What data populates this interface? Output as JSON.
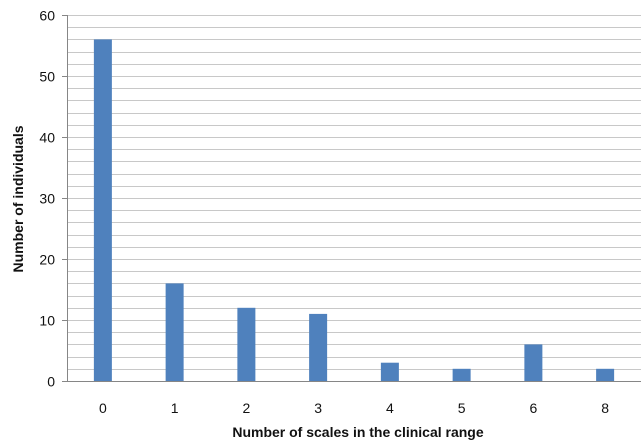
{
  "chart_data": {
    "type": "bar",
    "categories": [
      "0",
      "1",
      "2",
      "3",
      "4",
      "5",
      "6",
      "8"
    ],
    "values": [
      56,
      16,
      12,
      11,
      3,
      2,
      6,
      2
    ],
    "xlabel": "Number of scales in the clinical range",
    "ylabel": "Number of individuals",
    "ylim": [
      0,
      60
    ],
    "yticks": [
      0,
      10,
      20,
      30,
      40,
      50,
      60
    ],
    "grid": true,
    "minor_grid_step": 2,
    "bar_color": "#4f81bd",
    "grid_color": "#c8c8c8"
  }
}
